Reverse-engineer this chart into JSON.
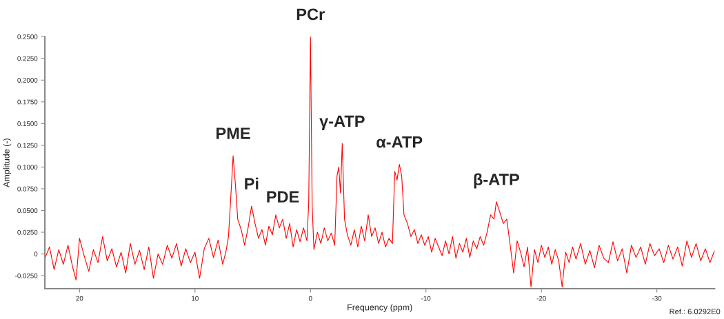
{
  "chart_data": {
    "type": "line",
    "xlabel": "Frequency (ppm)",
    "ylabel": "Amplitude (-)",
    "xlim": [
      23,
      -35
    ],
    "ylim": [
      -0.04,
      0.25
    ],
    "xticks": [
      20,
      10,
      0,
      -10,
      -20,
      -30
    ],
    "yticks": [
      {
        "value": -0.025,
        "label": "-0.0250"
      },
      {
        "value": 0,
        "label": "0"
      },
      {
        "value": 0.025,
        "label": "0.0250"
      },
      {
        "value": 0.05,
        "label": "0.0500"
      },
      {
        "value": 0.075,
        "label": "0.0750"
      },
      {
        "value": 0.1,
        "label": "0.1000"
      },
      {
        "value": 0.125,
        "label": "0.1250"
      },
      {
        "value": 0.15,
        "label": "0.1500"
      },
      {
        "value": 0.175,
        "label": "0.1750"
      },
      {
        "value": 0.2,
        "label": "0.2000"
      },
      {
        "value": 0.225,
        "label": "0.2250"
      },
      {
        "value": 0.25,
        "label": "0.2500"
      }
    ],
    "grid": false,
    "legend": false,
    "marker": "none",
    "line_style": "solid",
    "series": [
      {
        "color": "#ff0000",
        "x": [
          23.0,
          22.6,
          22.2,
          21.8,
          21.4,
          21.0,
          20.6,
          20.3,
          20.0,
          19.6,
          19.2,
          18.8,
          18.4,
          18.0,
          17.6,
          17.2,
          16.8,
          16.4,
          16.0,
          15.6,
          15.2,
          14.8,
          14.4,
          14.0,
          13.6,
          13.2,
          12.8,
          12.4,
          12.0,
          11.6,
          11.2,
          10.8,
          10.4,
          10.0,
          9.6,
          9.2,
          8.8,
          8.4,
          8.0,
          7.6,
          7.3,
          7.1,
          6.9,
          6.7,
          6.5,
          6.3,
          6.0,
          5.7,
          5.4,
          5.1,
          4.8,
          4.5,
          4.2,
          3.9,
          3.6,
          3.3,
          3.0,
          2.7,
          2.4,
          2.1,
          1.8,
          1.5,
          1.2,
          0.9,
          0.6,
          0.3,
          0.15,
          0.0,
          -0.15,
          -0.3,
          -0.6,
          -0.9,
          -1.2,
          -1.5,
          -1.8,
          -2.1,
          -2.3,
          -2.45,
          -2.6,
          -2.75,
          -2.95,
          -3.2,
          -3.5,
          -3.8,
          -4.1,
          -4.4,
          -4.7,
          -5.0,
          -5.3,
          -5.6,
          -5.9,
          -6.2,
          -6.5,
          -6.8,
          -7.1,
          -7.3,
          -7.5,
          -7.7,
          -7.9,
          -8.1,
          -8.4,
          -8.7,
          -9.0,
          -9.3,
          -9.6,
          -9.9,
          -10.2,
          -10.5,
          -10.8,
          -11.1,
          -11.4,
          -11.7,
          -12.0,
          -12.3,
          -12.6,
          -12.9,
          -13.2,
          -13.5,
          -13.8,
          -14.1,
          -14.4,
          -14.7,
          -15.0,
          -15.3,
          -15.6,
          -15.9,
          -16.1,
          -16.4,
          -16.7,
          -17.0,
          -17.3,
          -17.6,
          -17.9,
          -18.2,
          -18.5,
          -18.8,
          -19.1,
          -19.4,
          -19.7,
          -20.0,
          -20.3,
          -20.6,
          -20.9,
          -21.2,
          -21.5,
          -21.8,
          -22.1,
          -22.4,
          -22.7,
          -23.0,
          -23.4,
          -23.8,
          -24.2,
          -24.6,
          -25.0,
          -25.4,
          -25.8,
          -26.2,
          -26.6,
          -27.0,
          -27.4,
          -27.8,
          -28.2,
          -28.6,
          -29.0,
          -29.4,
          -29.8,
          -30.2,
          -30.6,
          -31.0,
          -31.4,
          -31.8,
          -32.2,
          -32.6,
          -33.0,
          -33.4,
          -33.8,
          -34.2,
          -34.6,
          -35.0
        ],
        "values": [
          -0.005,
          0.008,
          -0.018,
          0.005,
          -0.012,
          0.01,
          -0.015,
          -0.03,
          0.018,
          -0.002,
          -0.02,
          0.005,
          -0.01,
          0.02,
          -0.008,
          0.006,
          -0.015,
          0.002,
          -0.022,
          0.012,
          -0.012,
          0.004,
          -0.018,
          0.008,
          -0.028,
          0.0,
          -0.012,
          0.01,
          -0.005,
          0.012,
          -0.014,
          0.006,
          -0.01,
          0.002,
          -0.028,
          0.006,
          0.018,
          -0.004,
          0.016,
          -0.012,
          0.004,
          0.02,
          0.065,
          0.113,
          0.08,
          0.04,
          0.028,
          0.01,
          0.03,
          0.055,
          0.035,
          0.018,
          0.028,
          0.01,
          0.032,
          0.022,
          0.045,
          0.03,
          0.04,
          0.018,
          0.035,
          0.008,
          0.028,
          0.014,
          0.03,
          0.015,
          0.06,
          0.25,
          0.055,
          0.005,
          0.025,
          0.012,
          0.03,
          0.015,
          0.024,
          0.01,
          0.09,
          0.1,
          0.07,
          0.127,
          0.04,
          0.022,
          0.01,
          0.028,
          0.008,
          0.032,
          0.015,
          0.045,
          0.02,
          0.03,
          0.012,
          0.025,
          0.008,
          0.018,
          0.012,
          0.095,
          0.085,
          0.103,
          0.09,
          0.045,
          0.035,
          0.02,
          0.028,
          0.012,
          0.022,
          0.01,
          0.02,
          0.002,
          0.018,
          0.008,
          -0.002,
          0.015,
          0.0,
          0.02,
          -0.005,
          0.012,
          0.002,
          0.018,
          -0.004,
          0.015,
          0.006,
          0.02,
          0.01,
          0.025,
          0.045,
          0.04,
          0.06,
          0.048,
          0.035,
          0.04,
          0.01,
          -0.022,
          0.015,
          0.002,
          -0.015,
          0.008,
          -0.038,
          0.005,
          -0.01,
          0.01,
          -0.004,
          0.008,
          -0.012,
          0.005,
          -0.008,
          -0.038,
          0.002,
          -0.01,
          0.008,
          -0.006,
          0.012,
          -0.012,
          0.004,
          -0.016,
          0.01,
          -0.005,
          -0.01,
          0.014,
          -0.008,
          0.006,
          -0.022,
          0.01,
          -0.004,
          0.008,
          -0.012,
          0.012,
          -0.002,
          0.006,
          -0.01,
          0.01,
          -0.006,
          0.008,
          -0.014,
          0.015,
          -0.004,
          0.012,
          -0.008,
          0.006,
          -0.01,
          0.004
        ]
      }
    ],
    "annotations": [
      {
        "text": "PME",
        "x": 6.7,
        "y": 0.113
      },
      {
        "text": "Pi",
        "x": 5.1,
        "y": 0.055
      },
      {
        "text": "PDE",
        "x": 2.4,
        "y": 0.04
      },
      {
        "text": "PCr",
        "x": 0.0,
        "y": 0.25
      },
      {
        "text": "γ-ATP",
        "x": -2.75,
        "y": 0.127
      },
      {
        "text": "α-ATP",
        "x": -7.7,
        "y": 0.103
      },
      {
        "text": "β-ATP",
        "x": -16.1,
        "y": 0.06
      },
      "Ref.: 6.0292E0"
    ]
  }
}
